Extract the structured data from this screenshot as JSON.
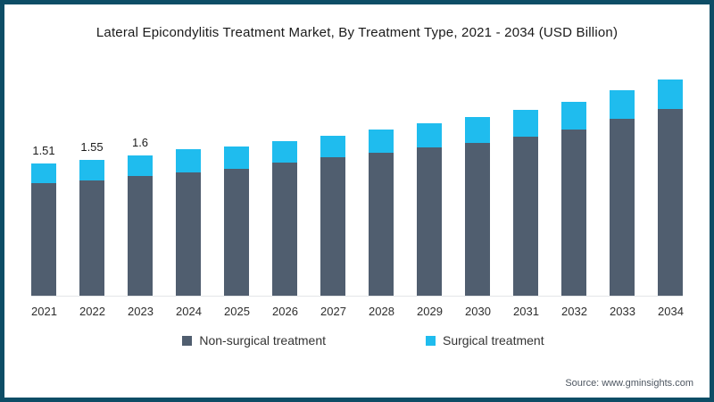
{
  "source_text": "Source: www.gminsights.com",
  "colors": {
    "frame_border": "#0d4d66",
    "non_surgical": "#505e6f",
    "surgical": "#1fbcee",
    "axis_line": "#e4e6e8"
  },
  "chart_data": {
    "type": "bar",
    "stacked": true,
    "title": "Lateral Epicondylitis Treatment Market, By Treatment Type, 2021 - 2034 (USD Billion)",
    "xlabel": "",
    "ylabel": "",
    "ylim": [
      0,
      2.55
    ],
    "grid": false,
    "legend_position": "bottom",
    "categories": [
      "2021",
      "2022",
      "2023",
      "2024",
      "2025",
      "2026",
      "2027",
      "2028",
      "2029",
      "2030",
      "2031",
      "2032",
      "2033",
      "2034"
    ],
    "series": [
      {
        "name": "Non-surgical treatment",
        "color": "#505e6f",
        "values": [
          1.29,
          1.32,
          1.37,
          1.41,
          1.45,
          1.52,
          1.58,
          1.63,
          1.69,
          1.75,
          1.82,
          1.9,
          2.02,
          2.13
        ]
      },
      {
        "name": "Surgical treatment",
        "color": "#1fbcee",
        "values": [
          0.22,
          0.23,
          0.23,
          0.26,
          0.25,
          0.25,
          0.25,
          0.27,
          0.28,
          0.29,
          0.3,
          0.31,
          0.33,
          0.34
        ]
      }
    ],
    "totals": [
      1.51,
      1.55,
      1.6,
      1.67,
      1.7,
      1.77,
      1.83,
      1.9,
      1.97,
      2.04,
      2.12,
      2.21,
      2.35,
      2.47
    ],
    "value_labels": [
      "1.51",
      "1.55",
      "1.6",
      "",
      "",
      "",
      "",
      "",
      "",
      "",
      "",
      "",
      "",
      ""
    ]
  }
}
